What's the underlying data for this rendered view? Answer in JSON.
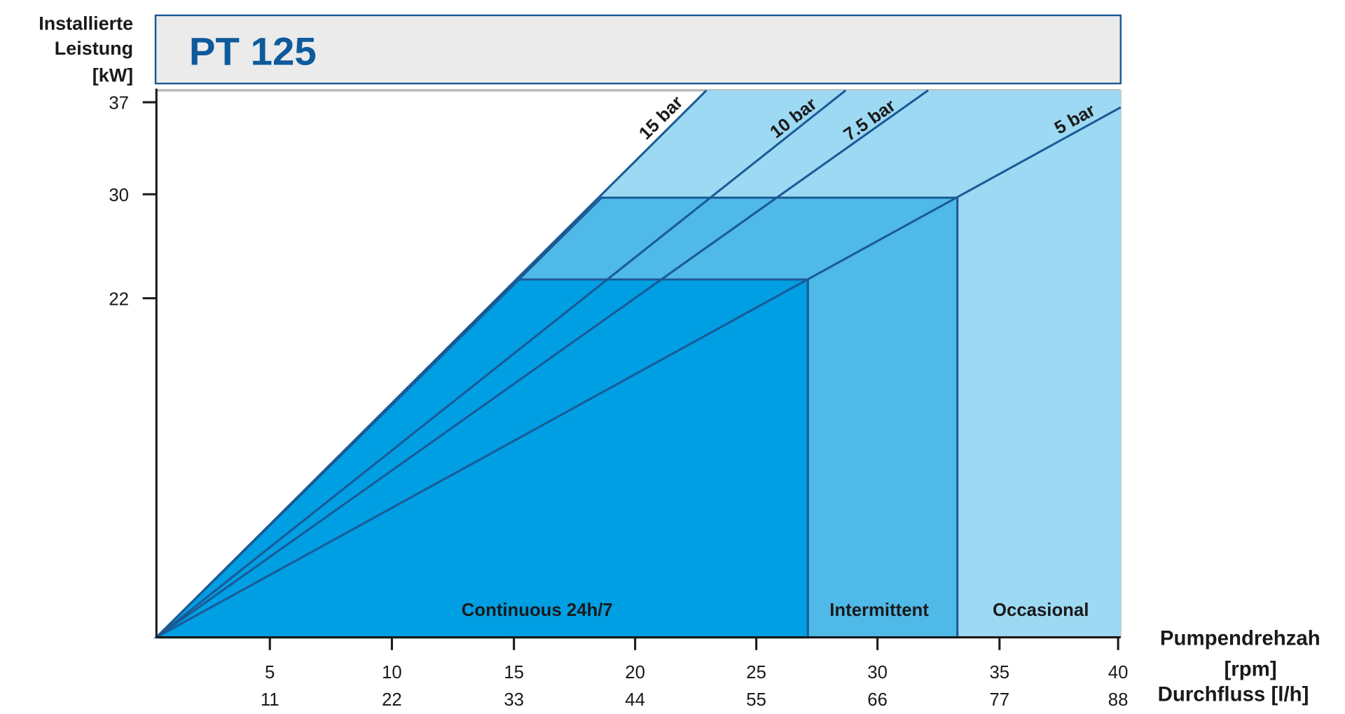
{
  "header": {
    "title": "PT 125"
  },
  "y_axis": {
    "label": [
      "Installierte",
      "Leistung",
      "[kW]"
    ],
    "ticks": [
      "37",
      "30",
      "22"
    ]
  },
  "x_axis": {
    "label_rpm": [
      "Pumpendrehzah",
      "[rpm]"
    ],
    "label_flow": "Durchfluss [l/h]",
    "rpm_ticks": [
      "5",
      "10",
      "15",
      "20",
      "25",
      "30",
      "35",
      "40"
    ],
    "flow_ticks": [
      "11",
      "22",
      "33",
      "44",
      "55",
      "66",
      "77",
      "88"
    ]
  },
  "pressure_lines": [
    "15 bar",
    "10 bar",
    "7.5 bar",
    "5 bar"
  ],
  "regions": [
    "Continuous 24h/7",
    "Intermittent",
    "Occasional"
  ]
}
